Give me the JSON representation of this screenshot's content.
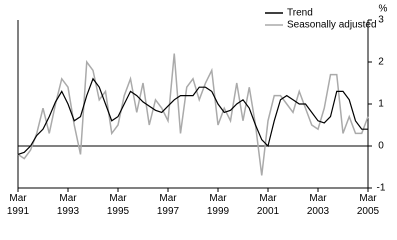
{
  "chart_data": {
    "type": "line",
    "y_unit": "%",
    "categories": [
      "Mar 1991",
      null,
      null,
      null,
      null,
      null,
      null,
      null,
      "Mar 1993",
      null,
      null,
      null,
      null,
      null,
      null,
      null,
      "Mar 1995",
      null,
      null,
      null,
      null,
      null,
      null,
      null,
      "Mar 1997",
      null,
      null,
      null,
      null,
      null,
      null,
      null,
      "Mar 1999",
      null,
      null,
      null,
      null,
      null,
      null,
      null,
      "Mar 2001",
      null,
      null,
      null,
      null,
      null,
      null,
      null,
      "Mar 2003",
      null,
      null,
      null,
      null,
      null,
      null,
      null,
      "Mar 2005"
    ],
    "series": [
      {
        "name": "Trend",
        "color": "#000000",
        "values": [
          -0.2,
          -0.15,
          0.0,
          0.25,
          0.4,
          0.7,
          1.05,
          1.3,
          1.0,
          0.6,
          0.7,
          1.2,
          1.6,
          1.4,
          1.0,
          0.6,
          0.7,
          1.0,
          1.3,
          1.2,
          1.05,
          0.95,
          0.85,
          0.8,
          0.95,
          1.1,
          1.2,
          1.2,
          1.2,
          1.4,
          1.4,
          1.3,
          1.0,
          0.8,
          0.85,
          1.0,
          1.1,
          0.9,
          0.5,
          0.15,
          0.0,
          0.6,
          1.1,
          1.2,
          1.1,
          1.0,
          1.0,
          0.8,
          0.6,
          0.55,
          0.7,
          1.3,
          1.3,
          1.1,
          0.6,
          0.4,
          0.4
        ]
      },
      {
        "name": "Seasonally adjusted",
        "color": "#aaaaaa",
        "values": [
          -0.2,
          -0.3,
          -0.1,
          0.3,
          0.9,
          0.3,
          1.0,
          1.6,
          1.4,
          0.5,
          -0.2,
          2.0,
          1.8,
          1.1,
          1.3,
          0.3,
          0.5,
          1.2,
          1.6,
          0.8,
          1.5,
          0.5,
          1.1,
          0.9,
          0.6,
          2.2,
          0.3,
          1.4,
          1.6,
          1.1,
          1.5,
          1.8,
          0.5,
          0.9,
          0.6,
          1.5,
          0.6,
          1.4,
          0.5,
          -0.7,
          0.6,
          1.2,
          1.2,
          1.0,
          0.8,
          1.3,
          0.9,
          0.5,
          0.4,
          0.9,
          1.7,
          1.7,
          0.3,
          0.7,
          0.3,
          0.3,
          0.7
        ]
      }
    ],
    "ylim": [
      -1,
      3
    ],
    "yticks": [
      -1,
      0,
      1,
      2,
      3
    ],
    "legend": "top-right"
  }
}
